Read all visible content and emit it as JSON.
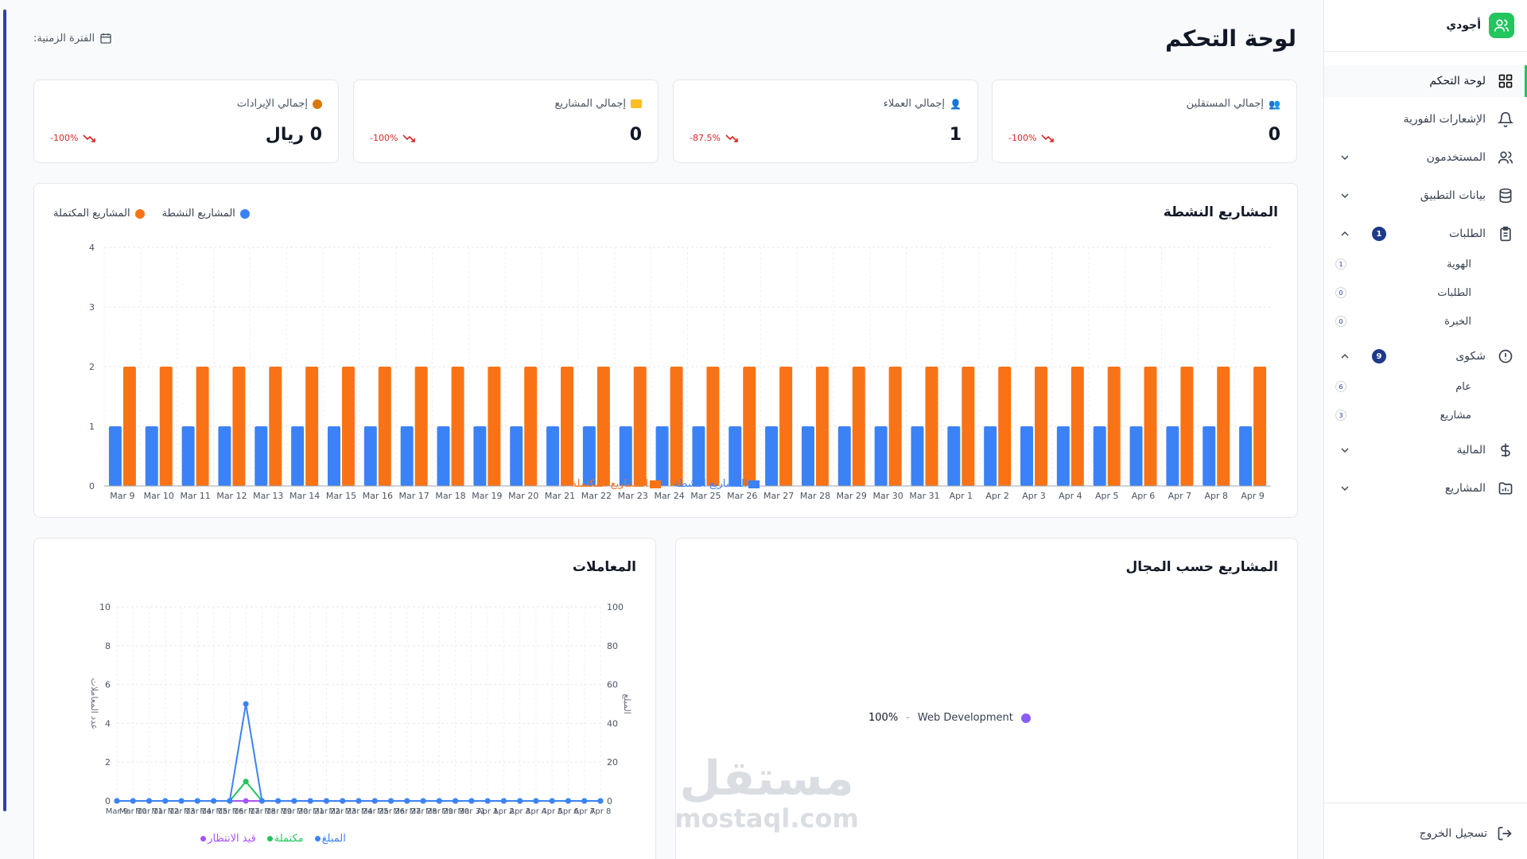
{
  "brand": {
    "name": "أجودي"
  },
  "page": {
    "title": "لوحة التحكم",
    "period_label": "الفترة الزمنية:"
  },
  "sidebar": {
    "items": [
      {
        "label": "لوحة التحكم"
      },
      {
        "label": "الإشعارات الفورية"
      },
      {
        "label": "المستخدمون"
      },
      {
        "label": "بيانات التطبيق"
      },
      {
        "label": "الطلبات",
        "badge": "1",
        "sub": [
          {
            "label": "الهوية",
            "count": "1"
          },
          {
            "label": "الطلبات",
            "count": "0"
          },
          {
            "label": "الخبرة",
            "count": "0"
          }
        ]
      },
      {
        "label": "شكوى",
        "badge": "9",
        "sub": [
          {
            "label": "عام",
            "count": "6"
          },
          {
            "label": "مشاريع",
            "count": "3"
          }
        ]
      },
      {
        "label": "المالية"
      },
      {
        "label": "المشاريع"
      }
    ],
    "logout": "تسجيل الخروج"
  },
  "stats": [
    {
      "label": "إجمالي المستقلين",
      "value": "0",
      "change": "-100%"
    },
    {
      "label": "إجمالي العملاء",
      "value": "1",
      "change": "-87.5%"
    },
    {
      "label": "إجمالي المشاريع",
      "value": "0",
      "change": "-100%"
    },
    {
      "label": "إجمالي الإيرادات",
      "value": "0 ريال",
      "change": "-100%"
    }
  ],
  "active_projects": {
    "title": "المشاريع النشطة",
    "legend_top": {
      "active": "المشاريع النشطة",
      "completed": "المشاريع المكتملة"
    },
    "legend_bottom": {
      "active": "المشاريع النشطة",
      "completed": "المشاريع المكتملة"
    }
  },
  "transactions": {
    "title": "المعاملات",
    "left_axis": "عدد المعاملات",
    "right_axis": "المبلغ",
    "legend": {
      "amount": "المبلغ",
      "completed": "مكتملة",
      "pending": "قيد الانتظار"
    }
  },
  "projects_by_field": {
    "title": "المشاريع حسب المجال",
    "items": [
      {
        "label": "Web Development",
        "percent": "100%"
      }
    ]
  },
  "watermark": {
    "ar": "مستقل",
    "en": "mostaql.com"
  },
  "colors": {
    "active": "#3b82f6",
    "completed": "#f97316",
    "green": "#22c55e",
    "purple": "#a855f7",
    "negative": "#dc2626",
    "brand": "#22c55e"
  },
  "chart_data": [
    {
      "type": "bar",
      "title": "المشاريع النشطة",
      "categories": [
        "Mar 9",
        "Mar 10",
        "Mar 11",
        "Mar 12",
        "Mar 13",
        "Mar 14",
        "Mar 15",
        "Mar 16",
        "Mar 17",
        "Mar 18",
        "Mar 19",
        "Mar 20",
        "Mar 21",
        "Mar 22",
        "Mar 23",
        "Mar 24",
        "Mar 25",
        "Mar 26",
        "Mar 27",
        "Mar 28",
        "Mar 29",
        "Mar 30",
        "Mar 31",
        "Apr 1",
        "Apr 2",
        "Apr 3",
        "Apr 4",
        "Apr 5",
        "Apr 6",
        "Apr 7",
        "Apr 8",
        "Apr 9"
      ],
      "series": [
        {
          "name": "المشاريع النشطة",
          "values": [
            1,
            1,
            1,
            1,
            1,
            1,
            1,
            1,
            1,
            1,
            1,
            1,
            1,
            1,
            1,
            1,
            1,
            1,
            1,
            1,
            1,
            1,
            1,
            1,
            1,
            1,
            1,
            1,
            1,
            1,
            1,
            1
          ]
        },
        {
          "name": "المشاريع المكتملة",
          "values": [
            2,
            2,
            2,
            2,
            2,
            2,
            2,
            2,
            2,
            2,
            2,
            2,
            2,
            2,
            2,
            2,
            2,
            2,
            2,
            2,
            2,
            2,
            2,
            2,
            2,
            2,
            2,
            2,
            2,
            2,
            2,
            2
          ]
        }
      ],
      "ylim": [
        0,
        4
      ],
      "yticks": [
        0,
        1,
        2,
        3,
        4
      ],
      "grid": true
    },
    {
      "type": "line",
      "title": "المعاملات",
      "categories": [
        "Mar 9",
        "Mar 10",
        "Mar 11",
        "Mar 12",
        "Mar 13",
        "Mar 14",
        "Mar 15",
        "Mar 16",
        "Mar 17",
        "Mar 18",
        "Mar 19",
        "Mar 20",
        "Mar 21",
        "Mar 22",
        "Mar 23",
        "Mar 24",
        "Mar 25",
        "Mar 26",
        "Mar 27",
        "Mar 28",
        "Mar 29",
        "Mar 30",
        "Mar 31",
        "Apr 1",
        "Apr 2",
        "Apr 3",
        "Apr 4",
        "Apr 5",
        "Apr 6",
        "Apr 7",
        "Apr 8"
      ],
      "series": [
        {
          "name": "المبلغ",
          "axis": "right",
          "values": [
            0,
            0,
            0,
            0,
            0,
            0,
            0,
            0,
            50,
            0,
            0,
            0,
            0,
            0,
            0,
            0,
            0,
            0,
            0,
            0,
            0,
            0,
            0,
            0,
            0,
            0,
            0,
            0,
            0,
            0,
            0
          ]
        },
        {
          "name": "مكتملة",
          "axis": "left",
          "values": [
            0,
            0,
            0,
            0,
            0,
            0,
            0,
            0,
            1,
            0,
            0,
            0,
            0,
            0,
            0,
            0,
            0,
            0,
            0,
            0,
            0,
            0,
            0,
            0,
            0,
            0,
            0,
            0,
            0,
            0,
            0
          ]
        },
        {
          "name": "قيد الانتظار",
          "axis": "left",
          "values": [
            0,
            0,
            0,
            0,
            0,
            0,
            0,
            0,
            0,
            0,
            0,
            0,
            0,
            0,
            0,
            0,
            0,
            0,
            0,
            0,
            0,
            0,
            0,
            0,
            0,
            0,
            0,
            0,
            0,
            0,
            0
          ]
        }
      ],
      "ylim_left": [
        0,
        10
      ],
      "yticks_left": [
        0,
        2,
        4,
        6,
        8,
        10
      ],
      "ylim_right": [
        0,
        100
      ],
      "yticks_right": [
        0,
        20,
        40,
        60,
        80,
        100
      ],
      "ylabel_left": "عدد المعاملات",
      "ylabel_right": "المبلغ"
    },
    {
      "type": "pie",
      "title": "المشاريع حسب المجال",
      "labels": [
        "Web Development"
      ],
      "values": [
        100
      ]
    }
  ]
}
